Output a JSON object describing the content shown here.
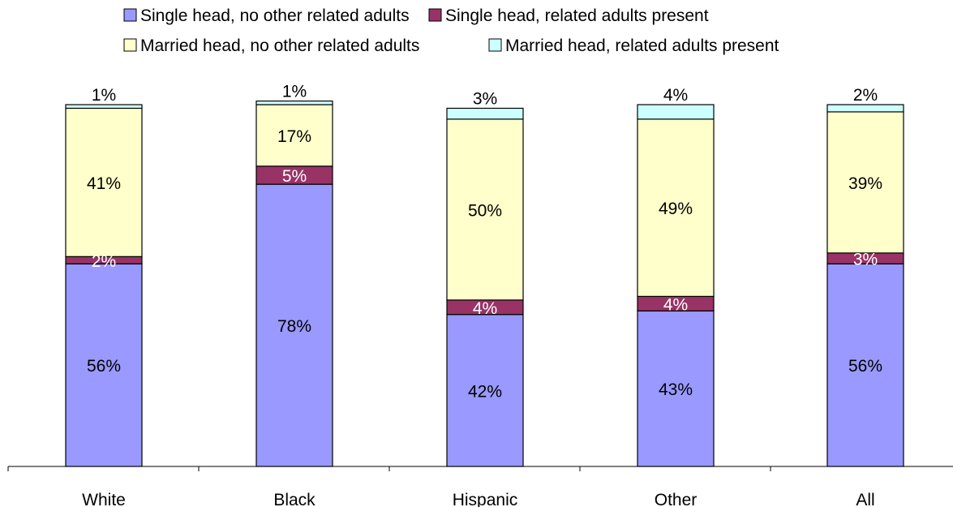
{
  "chart_data": {
    "type": "bar",
    "stacked": true,
    "normalized_percent": true,
    "title": "",
    "xlabel": "",
    "ylabel": "",
    "ylim": [
      0,
      100
    ],
    "grid": false,
    "legend_position": "top",
    "categories": [
      "White",
      "Black",
      "Hispanic",
      "Other",
      "All"
    ],
    "series": [
      {
        "name": "Single head, no other related adults",
        "color": "#9999ff",
        "values": [
          56,
          78,
          42,
          43,
          56
        ],
        "labels": [
          "56%",
          "78%",
          "42%",
          "43%",
          "56%"
        ],
        "label_color": "#000000"
      },
      {
        "name": "Single head, related adults present",
        "color": "#993366",
        "values": [
          2,
          5,
          4,
          4,
          3
        ],
        "labels": [
          "2%",
          "5%",
          "4%",
          "4%",
          "3%"
        ],
        "label_color": "#ffffff"
      },
      {
        "name": "Married head, no other related adults",
        "color": "#ffffcc",
        "values": [
          41,
          17,
          50,
          49,
          39
        ],
        "labels": [
          "41%",
          "17%",
          "50%",
          "49%",
          "39%"
        ],
        "label_color": "#000000"
      },
      {
        "name": "Married head, related adults present",
        "color": "#ccffff",
        "values": [
          1,
          1,
          3,
          4,
          2
        ],
        "labels": [
          "1%",
          "1%",
          "3%",
          "4%",
          "2%"
        ],
        "label_color": "#000000"
      }
    ]
  }
}
